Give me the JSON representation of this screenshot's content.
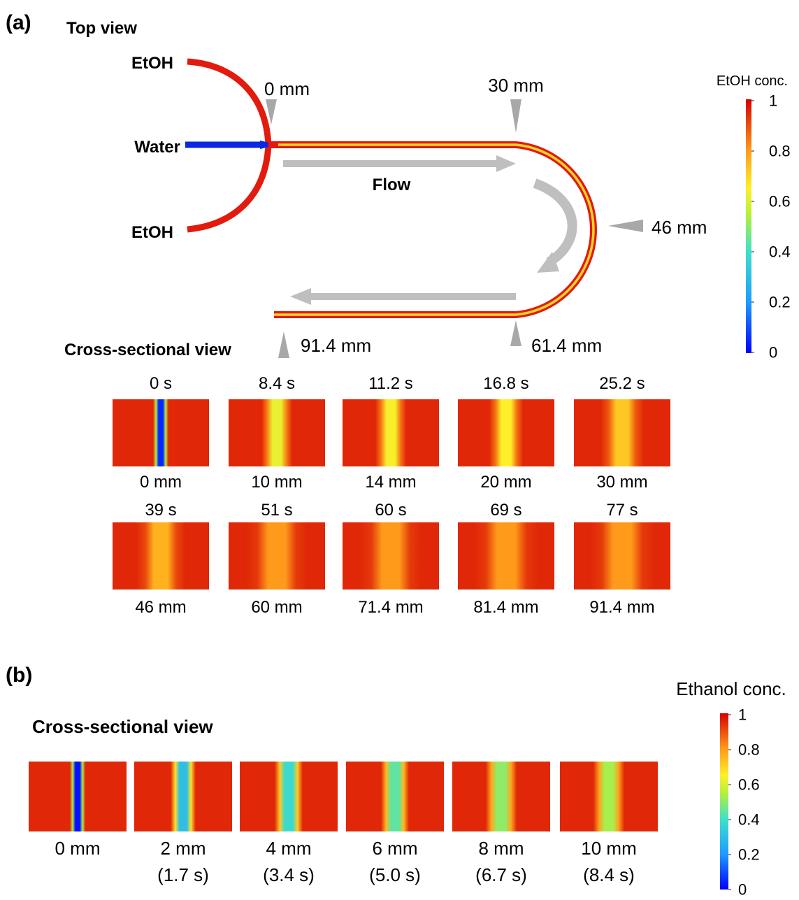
{
  "panel_a": {
    "letter": "(a)",
    "top_view_title": "Top view",
    "inlets": {
      "etoh_top": "EtOH",
      "water": "Water",
      "etoh_bottom": "EtOH"
    },
    "flow_label": "Flow",
    "positions": {
      "p0": "0 mm",
      "p30": "30 mm",
      "p46": "46 mm",
      "p61": "61.4 mm",
      "p91": "91.4 mm"
    },
    "cross_section_title": "Cross-sectional view",
    "colorbar": {
      "title": "EtOH conc.",
      "ticks": [
        "1",
        "0.8",
        "0.6",
        "0.4",
        "0.2",
        "0"
      ]
    },
    "row1": [
      {
        "time": "0 s",
        "pos": "0 mm",
        "center_conc": 0.05,
        "width": 0.1
      },
      {
        "time": "8.4 s",
        "pos": "10 mm",
        "center_conc": 0.62,
        "width": 0.2
      },
      {
        "time": "11.2 s",
        "pos": "14 mm",
        "center_conc": 0.64,
        "width": 0.2
      },
      {
        "time": "16.8 s",
        "pos": "20 mm",
        "center_conc": 0.65,
        "width": 0.22
      },
      {
        "time": "25.2 s",
        "pos": "30 mm",
        "center_conc": 0.72,
        "width": 0.28
      }
    ],
    "row2": [
      {
        "time": "39 s",
        "pos": "46 mm",
        "center_conc": 0.76,
        "width": 0.32
      },
      {
        "time": "51 s",
        "pos": "60 mm",
        "center_conc": 0.8,
        "width": 0.4
      },
      {
        "time": "60 s",
        "pos": "71.4 mm",
        "center_conc": 0.8,
        "width": 0.4
      },
      {
        "time": "69 s",
        "pos": "81.4 mm",
        "center_conc": 0.8,
        "width": 0.42
      },
      {
        "time": "77 s",
        "pos": "91.4 mm",
        "center_conc": 0.8,
        "width": 0.42
      }
    ]
  },
  "panel_b": {
    "letter": "(b)",
    "cross_section_title": "Cross-sectional view",
    "colorbar": {
      "title": "Ethanol conc.",
      "ticks": [
        "1",
        "0.8",
        "0.6",
        "0.4",
        "0.2",
        "0"
      ]
    },
    "sections": [
      {
        "pos": "0 mm",
        "time": "",
        "center_conc": 0.02,
        "width": 0.1
      },
      {
        "pos": "2 mm",
        "time": "(1.7 s)",
        "center_conc": 0.3,
        "width": 0.16
      },
      {
        "pos": "4 mm",
        "time": "(3.4 s)",
        "center_conc": 0.38,
        "width": 0.18
      },
      {
        "pos": "6 mm",
        "time": "(5.0 s)",
        "center_conc": 0.44,
        "width": 0.18
      },
      {
        "pos": "8 mm",
        "time": "(6.7 s)",
        "center_conc": 0.5,
        "width": 0.2
      },
      {
        "pos": "10 mm",
        "time": "(8.4 s)",
        "center_conc": 0.53,
        "width": 0.2
      }
    ]
  },
  "colors": {
    "red": "#e31a0e",
    "yellow": "#f5d52a",
    "blue": "#0a28e0",
    "arrow": "#bfbfbf"
  }
}
